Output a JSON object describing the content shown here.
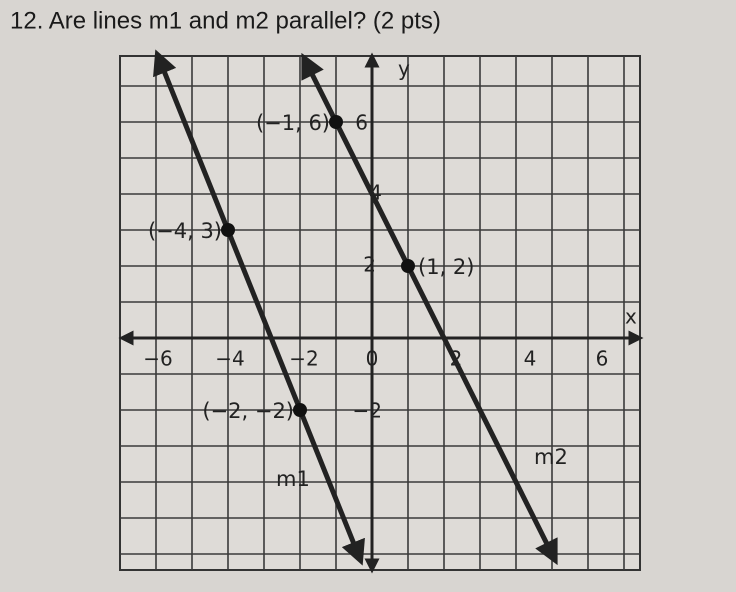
{
  "question": "12. Are lines m1 and m2 parallel? (2 pts)",
  "graph": {
    "x_axis_label": "x",
    "y_axis_label": "y",
    "x_tick_labels": [
      "−6",
      "−4",
      "−2",
      "0",
      "2",
      "4",
      "6"
    ],
    "y_tick_labels": [
      "6",
      "4",
      "2",
      "−2"
    ],
    "point_labels": [
      "(−1, 6)",
      "(−4, 3)",
      "(1, 2)",
      "(−2, −2)"
    ],
    "line_labels": [
      "m1",
      "m2"
    ]
  }
}
